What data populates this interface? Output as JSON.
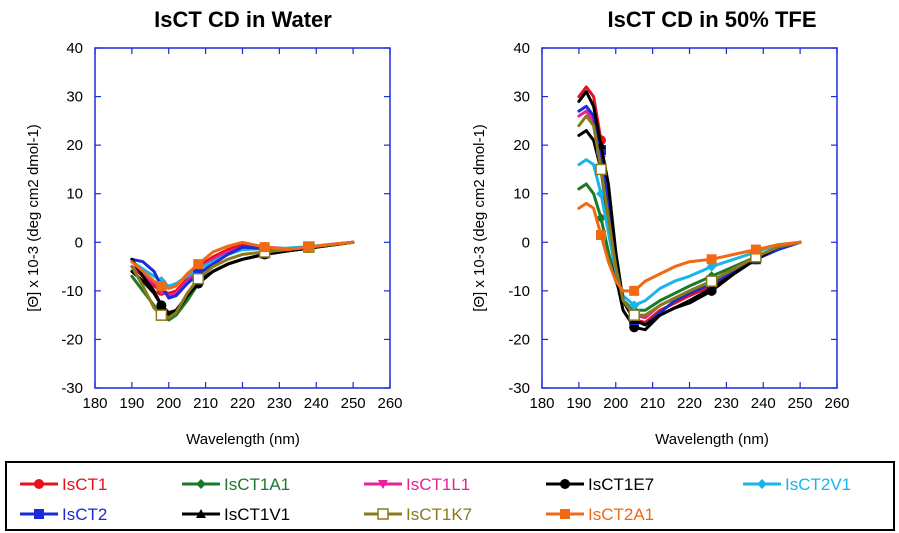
{
  "chart_data": [
    {
      "type": "line",
      "title": "IsCT CD in Water",
      "xlabel": "Wavelength (nm)",
      "ylabel": "[Θ] x 10-3 (deg cm2 dmol-1)",
      "xlim": [
        180,
        260
      ],
      "ylim": [
        -30,
        40
      ],
      "xticks": [
        "180",
        "190",
        "200",
        "210",
        "220",
        "230",
        "240",
        "250",
        "260"
      ],
      "yticks": [
        "40",
        "30",
        "20",
        "10",
        "0",
        "-10",
        "-20",
        "-30"
      ],
      "grid": false,
      "series": [
        {
          "name": "IsCT1",
          "x": [
            190,
            193,
            196,
            198,
            200,
            202,
            205,
            208,
            212,
            216,
            220,
            226,
            232,
            238,
            244,
            250
          ],
          "y": [
            -5,
            -7,
            -9,
            -10,
            -10.5,
            -10,
            -7.5,
            -5,
            -3,
            -1.5,
            -0.5,
            -1,
            -1.3,
            -1,
            -0.5,
            0
          ]
        },
        {
          "name": "IsCT1A1",
          "x": [
            190,
            193,
            196,
            198,
            200,
            202,
            205,
            208,
            212,
            216,
            220,
            226,
            232,
            238,
            244,
            250
          ],
          "y": [
            -7,
            -10,
            -13,
            -15,
            -16,
            -15,
            -12,
            -8.5,
            -6,
            -4.5,
            -3.5,
            -2.5,
            -1.8,
            -1.2,
            -0.6,
            0
          ]
        },
        {
          "name": "IsCT1L1",
          "x": [
            190,
            193,
            196,
            198,
            200,
            202,
            205,
            208,
            212,
            216,
            220,
            226,
            232,
            238,
            244,
            250
          ],
          "y": [
            -5,
            -6.5,
            -8.5,
            -10,
            -11,
            -10.5,
            -8,
            -5.5,
            -3.5,
            -2,
            -1,
            -1.2,
            -1.3,
            -1,
            -0.5,
            0
          ]
        },
        {
          "name": "IsCT1E7",
          "x": [
            190,
            193,
            196,
            198,
            200,
            202,
            205,
            208,
            212,
            216,
            220,
            226,
            232,
            238,
            244,
            250
          ],
          "y": [
            -6,
            -8,
            -10.5,
            -13,
            -14.5,
            -14,
            -11,
            -8.5,
            -6,
            -4.5,
            -3.5,
            -2.5,
            -1.8,
            -1.2,
            -0.6,
            0
          ]
        },
        {
          "name": "IsCT2V1",
          "x": [
            190,
            193,
            196,
            198,
            200,
            202,
            205,
            208,
            212,
            216,
            220,
            226,
            232,
            238,
            244,
            250
          ],
          "y": [
            -4,
            -5.5,
            -7,
            -8,
            -9,
            -8.5,
            -7,
            -5.5,
            -4,
            -2.5,
            -1.5,
            -1.3,
            -1.2,
            -0.9,
            -0.4,
            0
          ]
        },
        {
          "name": "IsCT2",
          "x": [
            190,
            193,
            196,
            198,
            200,
            202,
            205,
            208,
            212,
            216,
            220,
            226,
            232,
            238,
            244,
            250
          ],
          "y": [
            -3.5,
            -4,
            -6,
            -9,
            -11.5,
            -11,
            -8.5,
            -6.5,
            -4.5,
            -2.5,
            -1,
            -1.3,
            -1.5,
            -1,
            -0.5,
            0
          ]
        },
        {
          "name": "IsCT1V1",
          "x": [
            190,
            193,
            196,
            198,
            200,
            202,
            205,
            208,
            212,
            216,
            220,
            226,
            232,
            238,
            244,
            250
          ],
          "y": [
            -3.5,
            -7,
            -10,
            -13,
            -15,
            -14.5,
            -11,
            -8,
            -6,
            -4.5,
            -3.5,
            -2.5,
            -1.8,
            -1.2,
            -0.6,
            0
          ]
        },
        {
          "name": "IsCT1K7",
          "x": [
            190,
            193,
            196,
            198,
            200,
            202,
            205,
            208,
            212,
            216,
            220,
            226,
            232,
            238,
            244,
            250
          ],
          "y": [
            -5,
            -9,
            -13.5,
            -15,
            -15.5,
            -14.5,
            -10.5,
            -7.5,
            -5,
            -3.5,
            -2.5,
            -2,
            -1.5,
            -1,
            -0.5,
            0
          ]
        },
        {
          "name": "IsCT2A1",
          "x": [
            190,
            193,
            196,
            198,
            200,
            202,
            205,
            208,
            212,
            216,
            220,
            226,
            232,
            238,
            244,
            250
          ],
          "y": [
            -4,
            -6,
            -8,
            -9,
            -9.5,
            -9,
            -6.5,
            -4.5,
            -2,
            -0.8,
            0,
            -1,
            -1.5,
            -1,
            -0.4,
            0
          ]
        }
      ]
    },
    {
      "type": "line",
      "title": "IsCT CD in 50%  TFE",
      "xlabel": "Wavelength (nm)",
      "ylabel": "[Θ] x 10-3 (deg cm2 dmol-1)",
      "xlim": [
        180,
        260
      ],
      "ylim": [
        -30,
        40
      ],
      "xticks": [
        "180",
        "190",
        "200",
        "210",
        "220",
        "230",
        "240",
        "250",
        "260"
      ],
      "yticks": [
        "40",
        "30",
        "20",
        "10",
        "0",
        "-10",
        "-20",
        "-30"
      ],
      "grid": false,
      "series": [
        {
          "name": "IsCT1",
          "x": [
            190,
            192,
            194,
            196,
            198,
            200,
            202,
            205,
            208,
            212,
            216,
            220,
            226,
            232,
            238,
            244,
            250
          ],
          "y": [
            30,
            32,
            30,
            21,
            8,
            -5,
            -12,
            -16,
            -16.5,
            -14,
            -12.5,
            -11,
            -9,
            -6.5,
            -3.5,
            -1,
            0
          ]
        },
        {
          "name": "IsCT1A1",
          "x": [
            190,
            192,
            194,
            196,
            198,
            200,
            202,
            205,
            208,
            212,
            216,
            220,
            226,
            232,
            238,
            244,
            250
          ],
          "y": [
            11,
            12,
            10,
            5,
            -2,
            -8,
            -12,
            -14,
            -14,
            -12,
            -10.5,
            -9,
            -7,
            -5,
            -3,
            -1,
            0
          ]
        },
        {
          "name": "IsCT1L1",
          "x": [
            190,
            192,
            194,
            196,
            198,
            200,
            202,
            205,
            208,
            212,
            216,
            220,
            226,
            232,
            238,
            244,
            250
          ],
          "y": [
            26,
            27,
            25,
            17,
            6,
            -5,
            -12,
            -15,
            -15.5,
            -13,
            -11.5,
            -10,
            -8,
            -5.5,
            -3,
            -1,
            0
          ]
        },
        {
          "name": "IsCT1E7",
          "x": [
            190,
            192,
            194,
            196,
            198,
            200,
            202,
            205,
            208,
            212,
            216,
            220,
            226,
            232,
            238,
            244,
            250
          ],
          "y": [
            22,
            23,
            21,
            15,
            4,
            -7,
            -14,
            -17.5,
            -18,
            -15,
            -13.5,
            -12.5,
            -10,
            -6.5,
            -3.5,
            -1,
            0
          ]
        },
        {
          "name": "IsCT2V1",
          "x": [
            190,
            192,
            194,
            196,
            198,
            200,
            202,
            205,
            208,
            212,
            216,
            220,
            226,
            232,
            238,
            244,
            250
          ],
          "y": [
            16,
            17,
            16,
            10,
            2,
            -6,
            -11,
            -13,
            -12,
            -9.5,
            -8,
            -7,
            -5,
            -3.5,
            -2,
            -0.5,
            0
          ]
        },
        {
          "name": "IsCT2",
          "x": [
            190,
            192,
            194,
            196,
            198,
            200,
            202,
            205,
            208,
            212,
            216,
            220,
            226,
            232,
            238,
            244,
            250
          ],
          "y": [
            27,
            28,
            26,
            19,
            8,
            -4,
            -12,
            -16,
            -17,
            -14.5,
            -12,
            -10.5,
            -8.5,
            -6,
            -3.5,
            -1.5,
            0
          ]
        },
        {
          "name": "IsCT1V1",
          "x": [
            190,
            192,
            194,
            196,
            198,
            200,
            202,
            205,
            208,
            212,
            216,
            220,
            226,
            232,
            238,
            244,
            250
          ],
          "y": [
            29,
            31,
            28,
            20,
            12,
            -2,
            -12,
            -16,
            -17,
            -15,
            -13.5,
            -12,
            -9.5,
            -6.5,
            -3.5,
            -1,
            0
          ]
        },
        {
          "name": "IsCT1K7",
          "x": [
            190,
            192,
            194,
            196,
            198,
            200,
            202,
            205,
            208,
            212,
            216,
            220,
            226,
            232,
            238,
            244,
            250
          ],
          "y": [
            24,
            26,
            24,
            15,
            5,
            -5,
            -12,
            -15,
            -15,
            -13,
            -11.5,
            -10,
            -8,
            -5.5,
            -3,
            -1,
            0
          ]
        },
        {
          "name": "IsCT2A1",
          "x": [
            190,
            192,
            194,
            196,
            198,
            200,
            202,
            205,
            208,
            212,
            216,
            220,
            226,
            232,
            238,
            244,
            250
          ],
          "y": [
            7,
            8,
            7,
            1.5,
            -4,
            -8,
            -10,
            -10,
            -8,
            -6.5,
            -5,
            -4,
            -3.5,
            -2.5,
            -1.5,
            -0.5,
            0
          ]
        }
      ]
    }
  ],
  "styles": [
    {
      "name": "IsCT1",
      "color": "#e8111b",
      "marker": "circle"
    },
    {
      "name": "IsCT1A1",
      "color": "#1a7a2a",
      "marker": "diamond"
    },
    {
      "name": "IsCT1L1",
      "color": "#e8209a",
      "marker": "triangle-down"
    },
    {
      "name": "IsCT1E7",
      "color": "#000000",
      "marker": "circle"
    },
    {
      "name": "IsCT2V1",
      "color": "#19b4ea",
      "marker": "diamond"
    },
    {
      "name": "IsCT2",
      "color": "#1a2bd8",
      "marker": "square"
    },
    {
      "name": "IsCT1V1",
      "color": "#000000",
      "marker": "triangle-up"
    },
    {
      "name": "IsCT1K7",
      "color": "#8a7a1a",
      "marker": "open-square"
    },
    {
      "name": "IsCT2A1",
      "color": "#f06a14",
      "marker": "square"
    }
  ],
  "legend": {
    "placement": "bottom",
    "entries": [
      {
        "label": "IsCT1",
        "color": "#e8111b",
        "marker": "circle"
      },
      {
        "label": "IsCT1A1",
        "color": "#1a7a2a",
        "marker": "diamond"
      },
      {
        "label": "IsCT1L1",
        "color": "#e8209a",
        "marker": "triangle-down"
      },
      {
        "label": "IsCT1E7",
        "color": "#000000",
        "marker": "circle"
      },
      {
        "label": "IsCT2V1",
        "color": "#19b4ea",
        "marker": "diamond"
      },
      {
        "label": "IsCT2",
        "color": "#1a2bd8",
        "marker": "square"
      },
      {
        "label": "IsCT1V1",
        "color": "#000000",
        "marker": "triangle-up"
      },
      {
        "label": "IsCT1K7",
        "color": "#8a7a1a",
        "marker": "open-square"
      },
      {
        "label": "IsCT2A1",
        "color": "#f06a14",
        "marker": "square"
      }
    ]
  }
}
